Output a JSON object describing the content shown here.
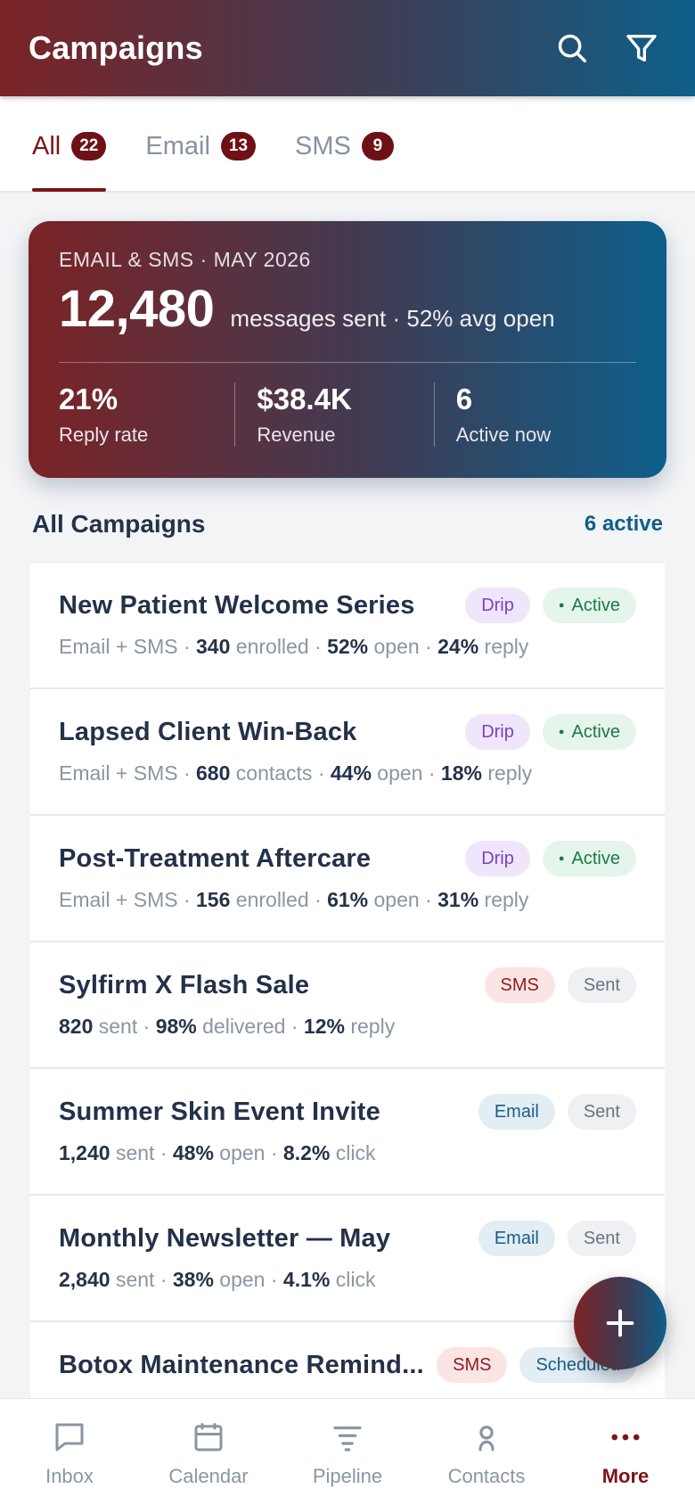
{
  "header": {
    "title": "Campaigns",
    "icons": [
      "search-icon",
      "filter-icon"
    ]
  },
  "tabs": [
    {
      "label": "All",
      "count": "22",
      "active": true
    },
    {
      "label": "Email",
      "count": "13",
      "active": false
    },
    {
      "label": "SMS",
      "count": "9",
      "active": false
    }
  ],
  "summary": {
    "eyebrow": "EMAIL & SMS · MAY 2026",
    "big_value": "12,480",
    "big_sub": "messages sent · 52% avg open",
    "stats": [
      {
        "value": "21%",
        "label": "Reply rate"
      },
      {
        "value": "$38.4K",
        "label": "Revenue"
      },
      {
        "value": "6",
        "label": "Active now"
      }
    ]
  },
  "section": {
    "title": "All Campaigns",
    "link": "6 active"
  },
  "campaigns": [
    {
      "name": "New Patient Welcome Series",
      "badges": [
        {
          "label": "Drip",
          "kind": "drip"
        },
        {
          "label": "Active",
          "kind": "active"
        }
      ],
      "meta": [
        {
          "text": "Email + SMS · "
        },
        {
          "text": "340",
          "bold": true
        },
        {
          "text": " enrolled · "
        },
        {
          "text": "52%",
          "bold": true
        },
        {
          "text": " open · "
        },
        {
          "text": "24%",
          "bold": true
        },
        {
          "text": " reply"
        }
      ]
    },
    {
      "name": "Lapsed Client Win-Back",
      "badges": [
        {
          "label": "Drip",
          "kind": "drip"
        },
        {
          "label": "Active",
          "kind": "active"
        }
      ],
      "meta": [
        {
          "text": "Email + SMS · "
        },
        {
          "text": "680",
          "bold": true
        },
        {
          "text": " contacts · "
        },
        {
          "text": "44%",
          "bold": true
        },
        {
          "text": " open · "
        },
        {
          "text": "18%",
          "bold": true
        },
        {
          "text": " reply"
        }
      ]
    },
    {
      "name": "Post-Treatment Aftercare",
      "badges": [
        {
          "label": "Drip",
          "kind": "drip"
        },
        {
          "label": "Active",
          "kind": "active"
        }
      ],
      "meta": [
        {
          "text": "Email + SMS · "
        },
        {
          "text": "156",
          "bold": true
        },
        {
          "text": " enrolled · "
        },
        {
          "text": "61%",
          "bold": true
        },
        {
          "text": " open · "
        },
        {
          "text": "31%",
          "bold": true
        },
        {
          "text": " reply"
        }
      ]
    },
    {
      "name": "Sylfirm X Flash Sale",
      "badges": [
        {
          "label": "SMS",
          "kind": "sms"
        },
        {
          "label": "Sent",
          "kind": "sent"
        }
      ],
      "meta": [
        {
          "text": "820",
          "bold": true
        },
        {
          "text": " sent · "
        },
        {
          "text": "98%",
          "bold": true
        },
        {
          "text": " delivered · "
        },
        {
          "text": "12%",
          "bold": true
        },
        {
          "text": " reply"
        }
      ]
    },
    {
      "name": "Summer Skin Event Invite",
      "badges": [
        {
          "label": "Email",
          "kind": "email"
        },
        {
          "label": "Sent",
          "kind": "sent"
        }
      ],
      "meta": [
        {
          "text": "1,240",
          "bold": true
        },
        {
          "text": " sent · "
        },
        {
          "text": "48%",
          "bold": true
        },
        {
          "text": " open · "
        },
        {
          "text": "8.2%",
          "bold": true
        },
        {
          "text": " click"
        }
      ]
    },
    {
      "name": "Monthly Newsletter — May",
      "badges": [
        {
          "label": "Email",
          "kind": "email"
        },
        {
          "label": "Sent",
          "kind": "sent"
        }
      ],
      "meta": [
        {
          "text": "2,840",
          "bold": true
        },
        {
          "text": " sent · "
        },
        {
          "text": "38%",
          "bold": true
        },
        {
          "text": " open · "
        },
        {
          "text": "4.1%",
          "bold": true
        },
        {
          "text": " click"
        }
      ]
    },
    {
      "name": "Botox Maintenance Remind...",
      "badges": [
        {
          "label": "SMS",
          "kind": "sms"
        },
        {
          "label": "Scheduled",
          "kind": "scheduled"
        }
      ],
      "meta": []
    }
  ],
  "fab": {
    "icon": "plus-icon"
  },
  "bottom_nav": [
    {
      "label": "Inbox",
      "icon": "inbox-icon",
      "active": false
    },
    {
      "label": "Calendar",
      "icon": "calendar-icon",
      "active": false
    },
    {
      "label": "Pipeline",
      "icon": "pipeline-icon",
      "active": false
    },
    {
      "label": "Contacts",
      "icon": "contacts-icon",
      "active": false
    },
    {
      "label": "More",
      "icon": "more-icon",
      "active": true
    }
  ],
  "colors": {
    "brand_red": "#7a1518",
    "brand_blue": "#0e5f8a",
    "active_green": "#1c7a45"
  }
}
